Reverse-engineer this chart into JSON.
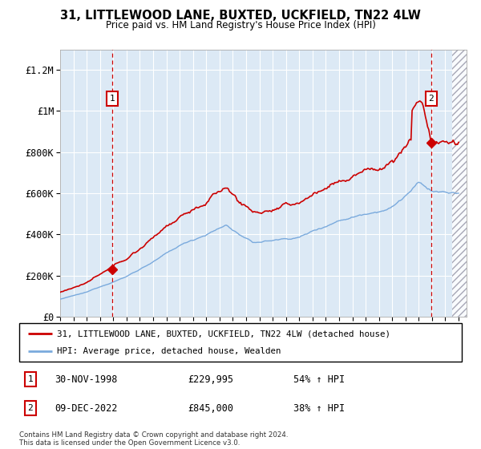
{
  "title1": "31, LITTLEWOOD LANE, BUXTED, UCKFIELD, TN22 4LW",
  "title2": "Price paid vs. HM Land Registry's House Price Index (HPI)",
  "background_color": "#dce9f5",
  "red_line_color": "#cc0000",
  "blue_line_color": "#7aaadd",
  "sale1_x": 1998.92,
  "sale1_y": 229995,
  "sale2_x": 2022.94,
  "sale2_y": 845000,
  "xmin": 1995,
  "xmax": 2025,
  "ymin": 0,
  "ymax": 1300000,
  "yticks": [
    0,
    200000,
    400000,
    600000,
    800000,
    1000000,
    1200000
  ],
  "ytick_labels": [
    "£0",
    "£200K",
    "£400K",
    "£600K",
    "£800K",
    "£1M",
    "£1.2M"
  ],
  "legend_line1": "31, LITTLEWOOD LANE, BUXTED, UCKFIELD, TN22 4LW (detached house)",
  "legend_line2": "HPI: Average price, detached house, Wealden",
  "sale1_date": "30-NOV-1998",
  "sale1_price": "£229,995",
  "sale1_hpi": "54% ↑ HPI",
  "sale2_date": "09-DEC-2022",
  "sale2_price": "£845,000",
  "sale2_hpi": "38% ↑ HPI",
  "footer": "Contains HM Land Registry data © Crown copyright and database right 2024.\nThis data is licensed under the Open Government Licence v3.0."
}
